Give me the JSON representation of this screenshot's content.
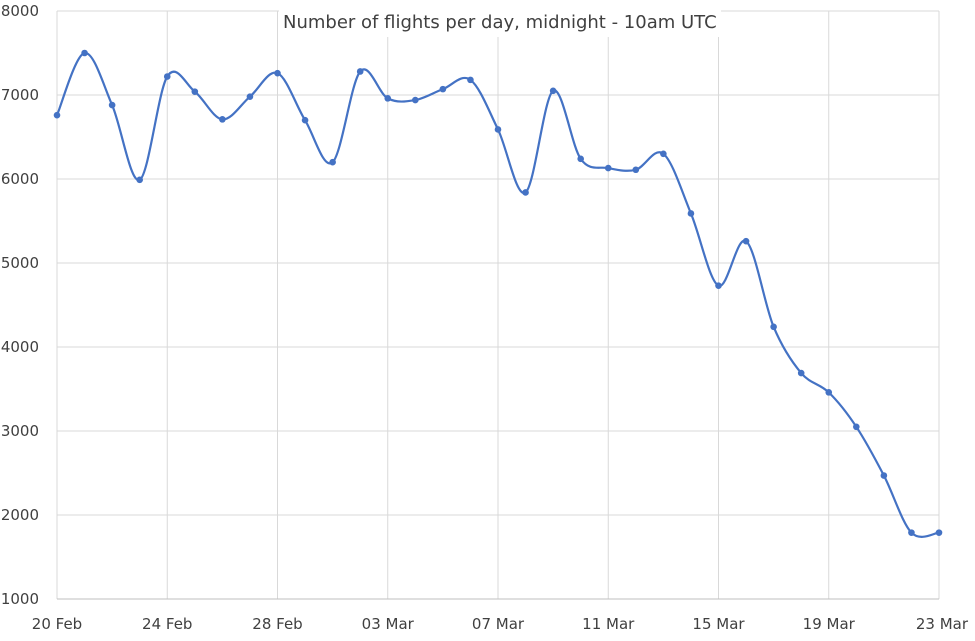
{
  "chart_data": {
    "type": "line",
    "title": "Number of flights per day, midnight - 10am UTC",
    "xlabel": "",
    "ylabel": "",
    "ylim": [
      1000,
      8000
    ],
    "yticks": [
      1000,
      2000,
      3000,
      4000,
      5000,
      6000,
      7000,
      8000
    ],
    "xticks": [
      "20 Feb",
      "24 Feb",
      "28 Feb",
      "03 Mar",
      "07 Mar",
      "11 Mar",
      "15 Mar",
      "19 Mar",
      "23 Mar"
    ],
    "x": [
      "20 Feb",
      "21 Feb",
      "22 Feb",
      "23 Feb",
      "24 Feb",
      "25 Feb",
      "26 Feb",
      "27 Feb",
      "28 Feb",
      "29 Feb",
      "01 Mar",
      "02 Mar",
      "03 Mar",
      "04 Mar",
      "05 Mar",
      "06 Mar",
      "07 Mar",
      "08 Mar",
      "09 Mar",
      "10 Mar",
      "11 Mar",
      "12 Mar",
      "13 Mar",
      "14 Mar",
      "15 Mar",
      "16 Mar",
      "17 Mar",
      "18 Mar",
      "19 Mar",
      "20 Mar",
      "21 Mar",
      "22 Mar",
      "23 Mar"
    ],
    "series": [
      {
        "values": [
          6760,
          7500,
          6880,
          5990,
          7220,
          7040,
          6710,
          6980,
          7260,
          6700,
          6200,
          7280,
          6960,
          6940,
          7070,
          7180,
          6590,
          5840,
          7050,
          6240,
          6130,
          6110,
          6300,
          5590,
          4730,
          5260,
          4240,
          3690,
          3460,
          3050,
          2470,
          1790,
          1790
        ],
        "color": "#4472C4"
      }
    ],
    "grid": true,
    "legend": "none"
  }
}
